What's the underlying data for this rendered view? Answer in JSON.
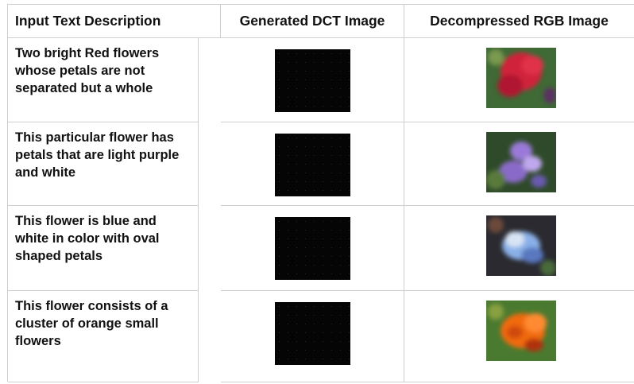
{
  "table": {
    "header": [
      "Input Text Description",
      "Generated DCT Image",
      "Decompressed RGB Image"
    ],
    "rows": [
      "Two bright Red flowers whose petals are not separated but a whole",
      "This particular flower has petals that are light purple and white",
      "This flower is blue and white in color with oval shaped petals",
      "This flower consists of a cluster of orange small flowers"
    ]
  }
}
